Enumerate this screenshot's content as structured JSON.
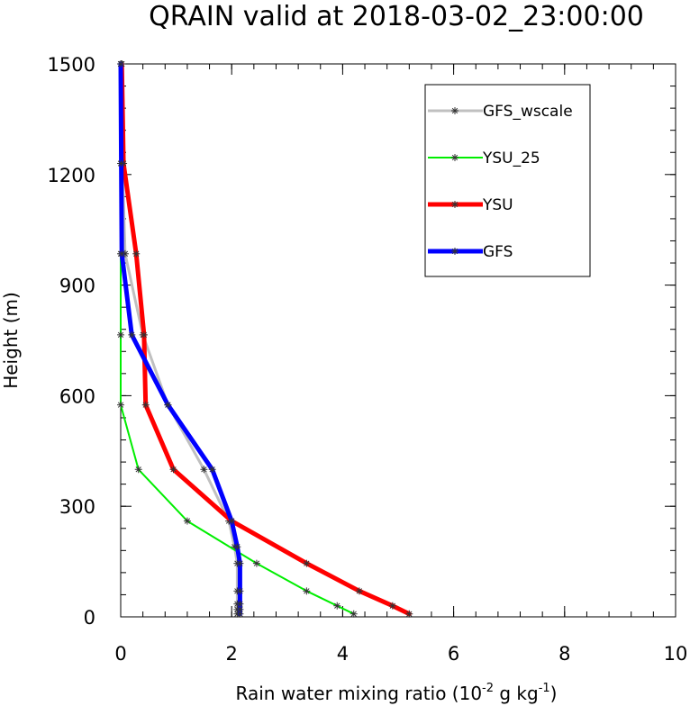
{
  "chart_data": {
    "type": "line",
    "title": "QRAIN valid at 2018-03-02_23:00:00",
    "xlabel_main": "Rain water mixing ratio (10",
    "xlabel_sup1": "-2",
    "xlabel_mid": " g kg",
    "xlabel_sup2": "-1",
    "xlabel_end": ")",
    "ylabel": "Height (m)",
    "xlim": [
      0,
      10
    ],
    "ylim": [
      0,
      1500
    ],
    "xticks": [
      0,
      2,
      4,
      6,
      8,
      10
    ],
    "yticks": [
      0,
      300,
      600,
      900,
      1200,
      1500
    ],
    "xtick_labels": [
      "0",
      "2",
      "4",
      "6",
      "8",
      "10"
    ],
    "ytick_labels": [
      "0",
      "300",
      "600",
      "900",
      "1200",
      "1500"
    ],
    "grid": false,
    "legend_position": "top-right",
    "marker": "asterisk",
    "series": [
      {
        "name": "GFS_wscale",
        "color": "#c0c0c0",
        "width": 3,
        "points": [
          [
            2.1,
            8
          ],
          [
            2.1,
            20
          ],
          [
            2.1,
            35
          ],
          [
            2.1,
            70
          ],
          [
            2.1,
            145
          ],
          [
            2.05,
            190
          ],
          [
            1.95,
            260
          ],
          [
            1.5,
            400
          ],
          [
            0.85,
            575
          ],
          [
            0.4,
            765
          ],
          [
            0.08,
            985
          ],
          [
            0.03,
            1230
          ],
          [
            0.02,
            1500
          ]
        ]
      },
      {
        "name": "YSU_25",
        "color": "#00ee00",
        "width": 2,
        "points": [
          [
            4.2,
            8
          ],
          [
            3.9,
            30
          ],
          [
            3.35,
            70
          ],
          [
            2.45,
            145
          ],
          [
            1.2,
            260
          ],
          [
            0.32,
            400
          ],
          [
            0.0,
            575
          ],
          [
            0.0,
            765
          ],
          [
            0.0,
            985
          ],
          [
            0.0,
            1230
          ],
          [
            0.0,
            1500
          ]
        ]
      },
      {
        "name": "YSU",
        "color": "#ff0000",
        "width": 5,
        "points": [
          [
            5.2,
            8
          ],
          [
            4.9,
            30
          ],
          [
            4.3,
            70
          ],
          [
            3.35,
            145
          ],
          [
            2.0,
            260
          ],
          [
            0.95,
            400
          ],
          [
            0.45,
            575
          ],
          [
            0.42,
            765
          ],
          [
            0.28,
            985
          ],
          [
            0.05,
            1230
          ],
          [
            0.02,
            1500
          ]
        ]
      },
      {
        "name": "GFS",
        "color": "#0000ff",
        "width": 5,
        "points": [
          [
            2.15,
            8
          ],
          [
            2.15,
            20
          ],
          [
            2.15,
            35
          ],
          [
            2.15,
            70
          ],
          [
            2.15,
            145
          ],
          [
            2.1,
            190
          ],
          [
            2.0,
            260
          ],
          [
            1.65,
            400
          ],
          [
            0.85,
            575
          ],
          [
            0.2,
            765
          ],
          [
            0.02,
            985
          ],
          [
            0.01,
            1230
          ],
          [
            0.0,
            1500
          ]
        ]
      }
    ]
  }
}
